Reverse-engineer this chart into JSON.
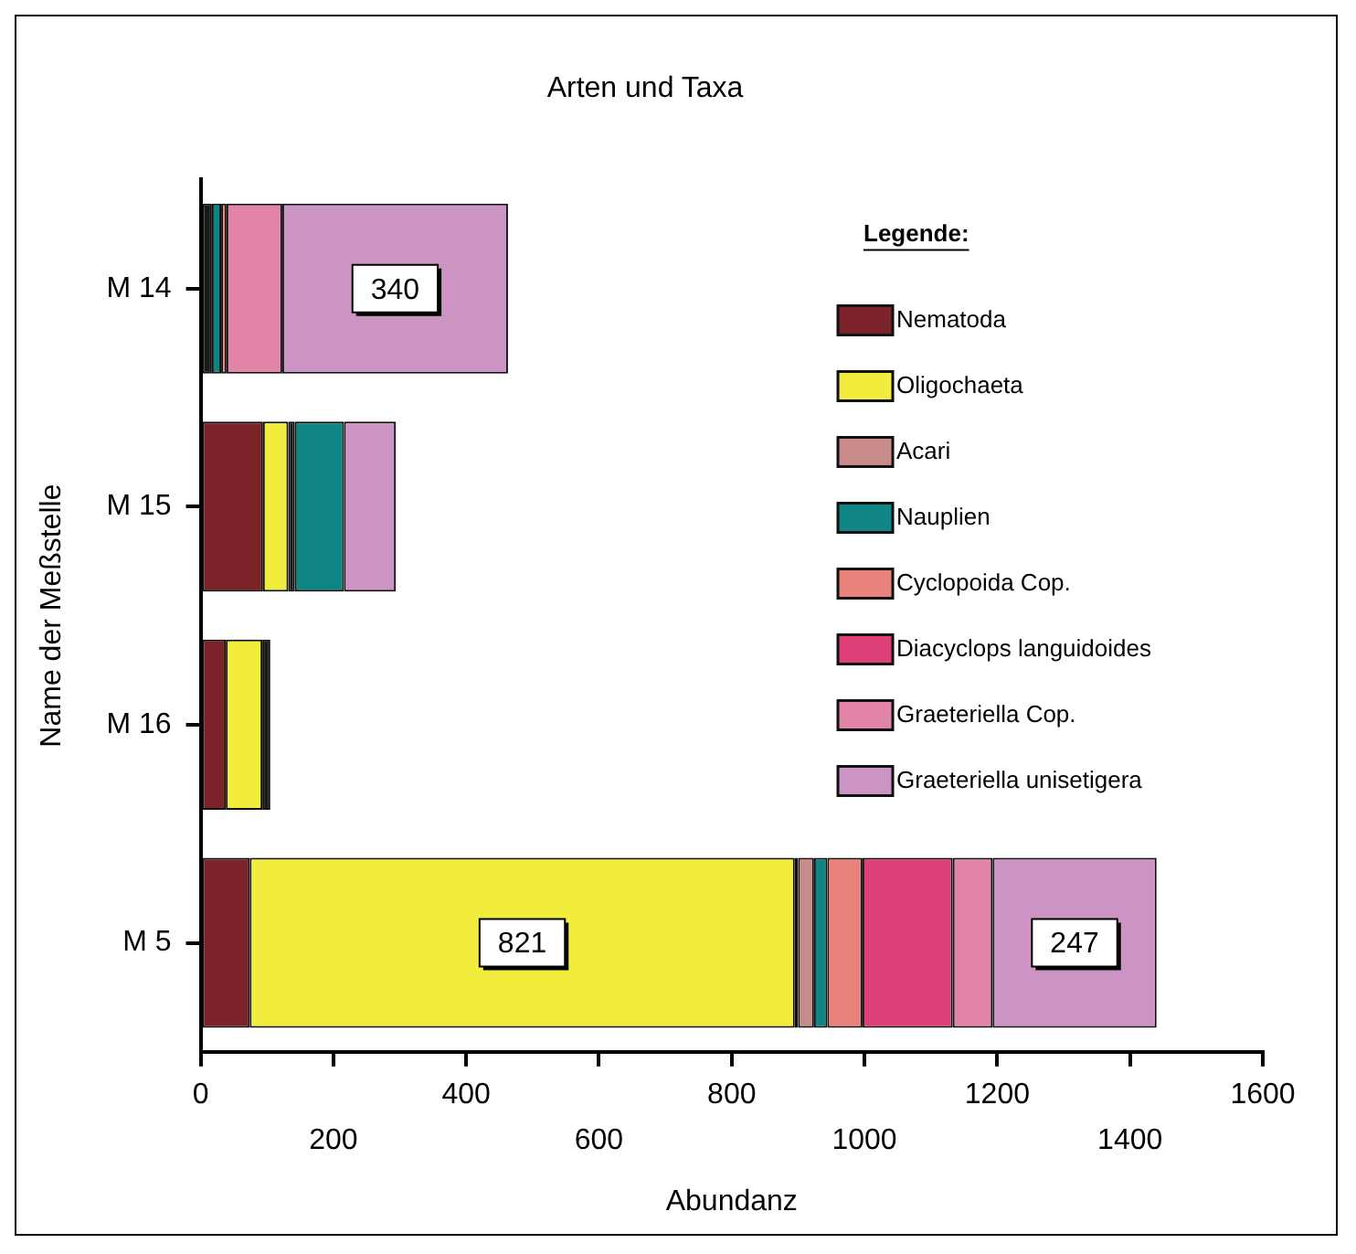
{
  "chart_data": {
    "type": "bar",
    "orientation": "horizontal",
    "stacked": true,
    "title": "Arten und Taxa",
    "xlabel": "Abundanz",
    "ylabel": "Name der Meßstelle",
    "legend_title": "Legende:",
    "legend": "top right",
    "grid": false,
    "categories": [
      "M 14",
      "M 15",
      "M 16",
      "M 5"
    ],
    "xlim": [
      0,
      1600
    ],
    "xticks": [
      0,
      {
        "value": 200,
        "label": null
      },
      400,
      {
        "value": 600,
        "label": null
      },
      800,
      {
        "value": 1000,
        "label": null
      },
      1200,
      {
        "value": 1400,
        "label": null
      },
      1600
    ],
    "x2lim": [
      0,
      1600
    ],
    "x2ticks": [
      200,
      600,
      1000,
      1400
    ],
    "series": [
      {
        "name": "Nematoda",
        "color": "#7b2329",
        "values": [
          null,
          94,
          38,
          74
        ]
      },
      {
        "name": "Oligochaeta",
        "color": "#f2ec3c",
        "values": [
          null,
          38,
          55,
          821
        ],
        "value_labels": [
          null,
          null,
          null,
          "821"
        ]
      },
      {
        "color": "#1a1a1a",
        "values": [
          17,
          10,
          12,
          5
        ]
      },
      {
        "name": "Acari",
        "color": "#c98a8a",
        "values": [
          null,
          null,
          null,
          24
        ]
      },
      {
        "name": "Nauplien",
        "color": "#0f8585",
        "values": [
          14,
          74,
          null,
          20
        ]
      },
      {
        "name": "Cyclopoida Cop.",
        "color": "#e8827a",
        "values": [
          8,
          null,
          null,
          53
        ]
      },
      {
        "name": "Diacyclops languidoides",
        "color": "#e0407a",
        "values": [
          null,
          null,
          null,
          136
        ]
      },
      {
        "name": "Graeteriella Cop.",
        "color": "#e284a8",
        "values": [
          84,
          null,
          null,
          60
        ]
      },
      {
        "name": "Graeteriella unisetigera",
        "color": "#cc94c2",
        "values": [
          340,
          78,
          null,
          247
        ],
        "value_labels": [
          "340",
          null,
          null,
          "247"
        ]
      }
    ]
  }
}
